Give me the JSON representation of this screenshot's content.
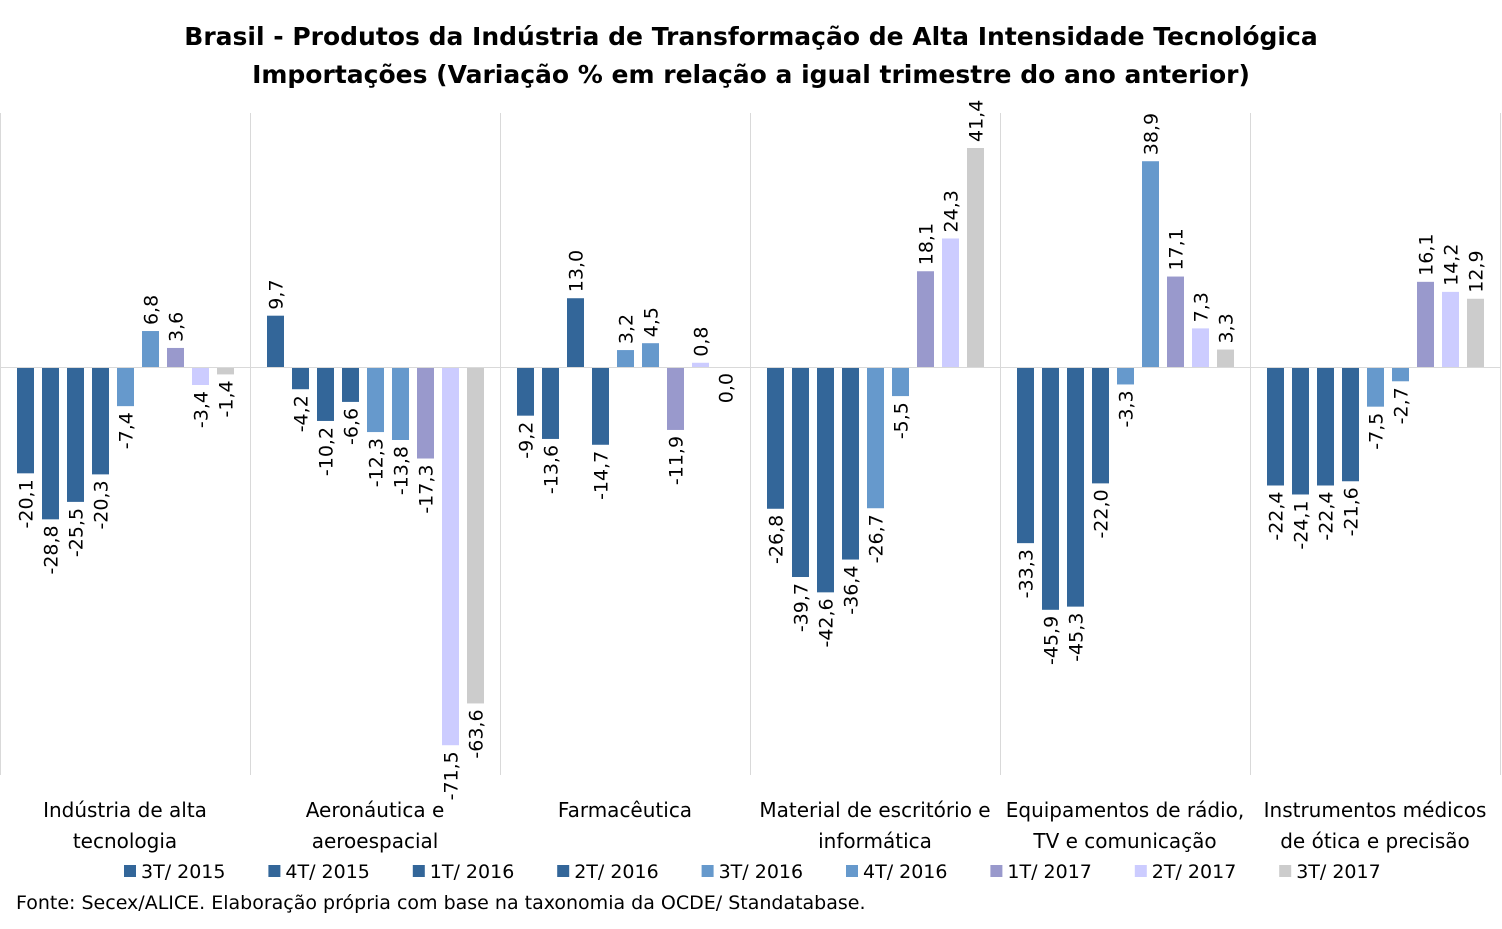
{
  "chart_data": {
    "type": "bar",
    "title": "Brasil - Produtos da Indústria de Transformação de Alta Intensidade Tecnológica",
    "subtitle": "Importações (Variação % em relação a igual trimestre do ano anterior)",
    "categories": [
      [
        "Indústria de alta",
        "tecnologia"
      ],
      [
        "Aeronáutica e",
        "aeroespacial"
      ],
      [
        "Farmacêutica"
      ],
      [
        "Material de escritório e",
        "informática"
      ],
      [
        "Equipamentos de rádio,",
        "TV e comunicação"
      ],
      [
        "Instrumentos médicos",
        "de ótica e precisão"
      ]
    ],
    "series": [
      {
        "name": "3T/ 2015",
        "color": "#336699",
        "values": [
          -20.1,
          9.7,
          -9.2,
          -26.8,
          -33.3,
          -22.4
        ]
      },
      {
        "name": "4T/ 2015",
        "color": "#336699",
        "values": [
          -28.8,
          -4.2,
          -13.6,
          -39.7,
          -45.9,
          -24.1
        ]
      },
      {
        "name": "1T/ 2016",
        "color": "#336699",
        "values": [
          -25.5,
          -10.2,
          13.0,
          -42.6,
          -45.3,
          -22.4
        ]
      },
      {
        "name": "2T/ 2016",
        "color": "#336699",
        "values": [
          -20.3,
          -6.6,
          -14.7,
          -36.4,
          -22.0,
          -21.6
        ]
      },
      {
        "name": "3T/ 2016",
        "color": "#6699cc",
        "values": [
          -7.4,
          -12.3,
          3.2,
          -26.7,
          -3.3,
          -7.5
        ]
      },
      {
        "name": "4T/ 2016",
        "color": "#6699cc",
        "values": [
          6.8,
          -13.8,
          4.5,
          -5.5,
          38.9,
          -2.7
        ]
      },
      {
        "name": "1T/ 2017",
        "color": "#9999cc",
        "values": [
          3.6,
          -17.3,
          -11.9,
          18.1,
          17.1,
          16.1
        ]
      },
      {
        "name": "2T/ 2017",
        "color": "#ccccff",
        "values": [
          -3.4,
          -71.5,
          0.8,
          24.3,
          7.3,
          14.2
        ]
      },
      {
        "name": "3T/ 2017",
        "color": "#cccccc",
        "values": [
          -1.4,
          -63.6,
          0.0,
          41.4,
          3.3,
          12.9
        ]
      }
    ],
    "ylim": [
      -77,
      47
    ],
    "grid": false,
    "legend_position": "bottom",
    "decimal_separator": ","
  },
  "footer": {
    "source": "Fonte: Secex/ALICE. Elaboração própria com base na taxonomia da OCDE/ Standatabase."
  }
}
